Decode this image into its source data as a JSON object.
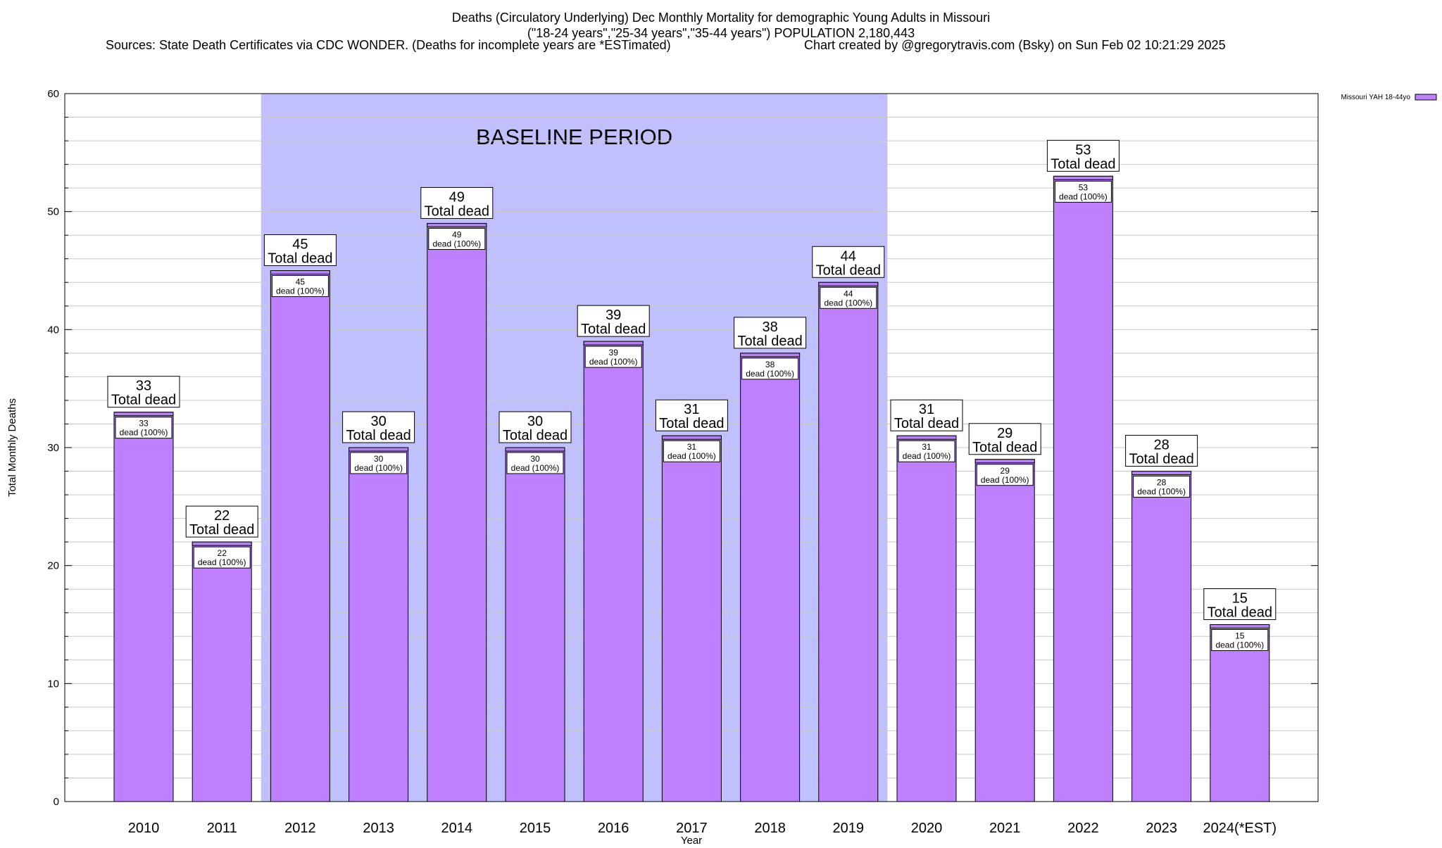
{
  "header": {
    "title_line1": "Deaths (Circulatory Underlying) Dec Monthly Mortality for demographic Young Adults in Missouri",
    "title_line2": "(\"18-24 years\",\"25-34 years\",\"35-44 years\") POPULATION 2,180,443",
    "sources": "Sources: State Death Certificates via CDC WONDER. (Deaths for incomplete years are *ESTimated)",
    "credit": "Chart created by @gregorytravis.com (Bsky) on Sun Feb 02 10:21:29 2025"
  },
  "colors": {
    "bar_fill": "#bf80ff",
    "bar_cap": "#b580f0",
    "baseline_band": "#c0c0ff",
    "grid": "#c8c8c8"
  },
  "chart_data": {
    "type": "bar",
    "title": "Deaths (Circulatory Underlying) Dec Monthly Mortality for demographic Young Adults in Missouri",
    "xlabel": "Year",
    "ylabel": "Total Monthly Deaths",
    "ylim": [
      0,
      60
    ],
    "yticks": [
      0,
      10,
      20,
      30,
      40,
      50,
      60
    ],
    "grid": true,
    "legend": {
      "placement": "top-right",
      "label": "Missouri YAH 18-44yo"
    },
    "categories": [
      "2010",
      "2011",
      "2012",
      "2013",
      "2014",
      "2015",
      "2016",
      "2017",
      "2018",
      "2019",
      "2020",
      "2021",
      "2022",
      "2023",
      "2024(*EST)"
    ],
    "series": [
      {
        "name": "Missouri YAH 18-44yo",
        "values": [
          33,
          22,
          45,
          30,
          49,
          30,
          39,
          31,
          38,
          44,
          31,
          29,
          53,
          28,
          15
        ]
      }
    ],
    "total_label_suffix": "Total dead",
    "inner_label_suffix": "dead (100%)",
    "baseline": {
      "label": "BASELINE PERIOD",
      "start": "2012",
      "end": "2019"
    }
  }
}
